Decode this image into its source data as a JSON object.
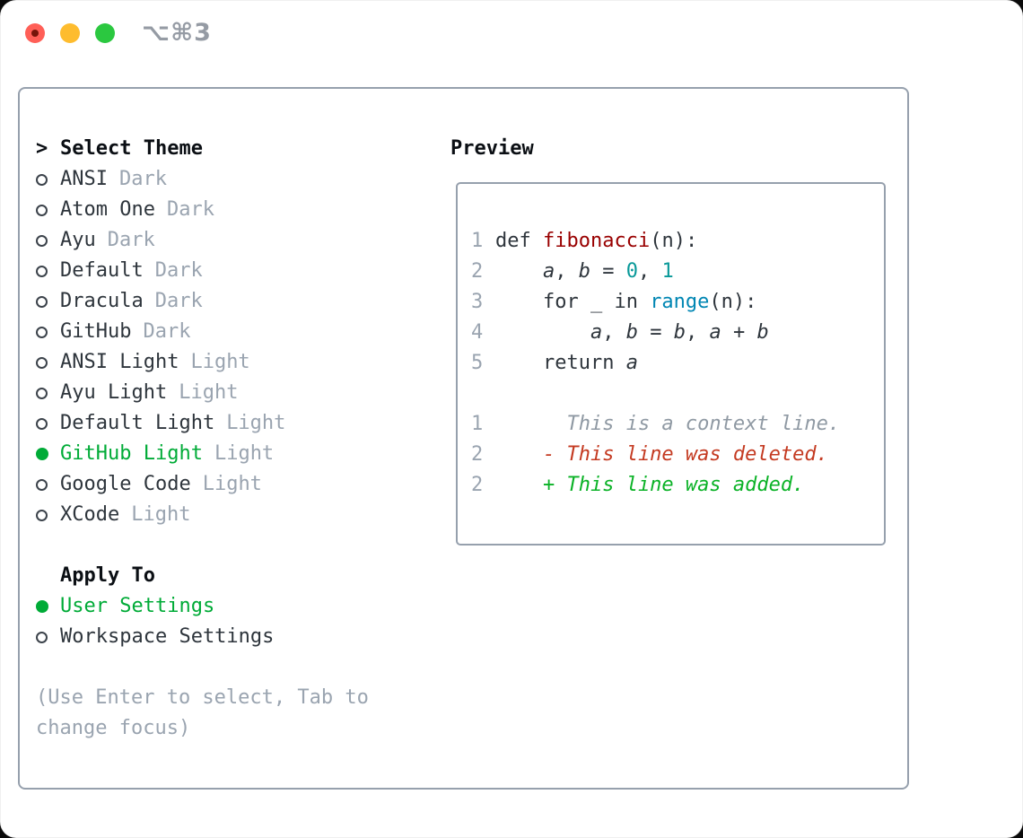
{
  "window": {
    "title": "⌥⌘3",
    "traffic_lights": [
      "close",
      "minimize",
      "zoom"
    ]
  },
  "colors": {
    "selected_green": "#00ab37",
    "added_green": "#0ab226",
    "deleted_red": "#c43a21",
    "syntax_title_red": "#990000",
    "syntax_number_teal": "#099999",
    "syntax_builtin_blue": "#0086b3",
    "muted_gray": "#9aa4b0",
    "text_dark": "#2e353c"
  },
  "theme_picker": {
    "prompt": ">",
    "title": "Select Theme",
    "themes": [
      {
        "name": "ANSI",
        "variant": "Dark",
        "selected": false
      },
      {
        "name": "Atom One",
        "variant": "Dark",
        "selected": false
      },
      {
        "name": "Ayu",
        "variant": "Dark",
        "selected": false
      },
      {
        "name": "Default",
        "variant": "Dark",
        "selected": false
      },
      {
        "name": "Dracula",
        "variant": "Dark",
        "selected": false
      },
      {
        "name": "GitHub",
        "variant": "Dark",
        "selected": false
      },
      {
        "name": "ANSI Light",
        "variant": "Light",
        "selected": false
      },
      {
        "name": "Ayu Light",
        "variant": "Light",
        "selected": false
      },
      {
        "name": "Default Light",
        "variant": "Light",
        "selected": false
      },
      {
        "name": "GitHub Light",
        "variant": "Light",
        "selected": true
      },
      {
        "name": "Google Code",
        "variant": "Light",
        "selected": false
      },
      {
        "name": "XCode",
        "variant": "Light",
        "selected": false
      }
    ],
    "apply_to": {
      "title": "Apply To",
      "options": [
        {
          "name": "User Settings",
          "selected": true
        },
        {
          "name": "Workspace Settings",
          "selected": false
        }
      ]
    },
    "hint_lines": [
      "(Use Enter to select, Tab to",
      "change focus)"
    ]
  },
  "preview": {
    "title": "Preview",
    "code_lines": [
      {
        "num": "1",
        "tokens": [
          {
            "t": "def ",
            "k": "keyword"
          },
          {
            "t": "fibonacci",
            "k": "title"
          },
          {
            "t": "(n):",
            "k": "plain"
          }
        ]
      },
      {
        "num": "2",
        "tokens": [
          {
            "t": "    ",
            "k": "plain"
          },
          {
            "t": "a",
            "k": "variable"
          },
          {
            "t": ", ",
            "k": "plain"
          },
          {
            "t": "b",
            "k": "variable"
          },
          {
            "t": " = ",
            "k": "plain"
          },
          {
            "t": "0",
            "k": "number"
          },
          {
            "t": ", ",
            "k": "plain"
          },
          {
            "t": "1",
            "k": "number"
          }
        ]
      },
      {
        "num": "3",
        "tokens": [
          {
            "t": "    for _ in ",
            "k": "keyword"
          },
          {
            "t": "range",
            "k": "builtin"
          },
          {
            "t": "(n):",
            "k": "plain"
          }
        ]
      },
      {
        "num": "4",
        "tokens": [
          {
            "t": "        ",
            "k": "plain"
          },
          {
            "t": "a",
            "k": "variable"
          },
          {
            "t": ", ",
            "k": "plain"
          },
          {
            "t": "b",
            "k": "variable"
          },
          {
            "t": " = ",
            "k": "plain"
          },
          {
            "t": "b",
            "k": "variable"
          },
          {
            "t": ", ",
            "k": "plain"
          },
          {
            "t": "a",
            "k": "variable"
          },
          {
            "t": " + ",
            "k": "plain"
          },
          {
            "t": "b",
            "k": "variable"
          }
        ]
      },
      {
        "num": "5",
        "tokens": [
          {
            "t": "    return ",
            "k": "keyword"
          },
          {
            "t": "a",
            "k": "variable"
          }
        ]
      }
    ],
    "diff_lines": [
      {
        "num": "1",
        "kind": "context",
        "text": "      This is a context line."
      },
      {
        "num": "2",
        "kind": "deleted",
        "text": "    - This line was deleted."
      },
      {
        "num": "2",
        "kind": "added",
        "text": "    + This line was added."
      }
    ]
  }
}
